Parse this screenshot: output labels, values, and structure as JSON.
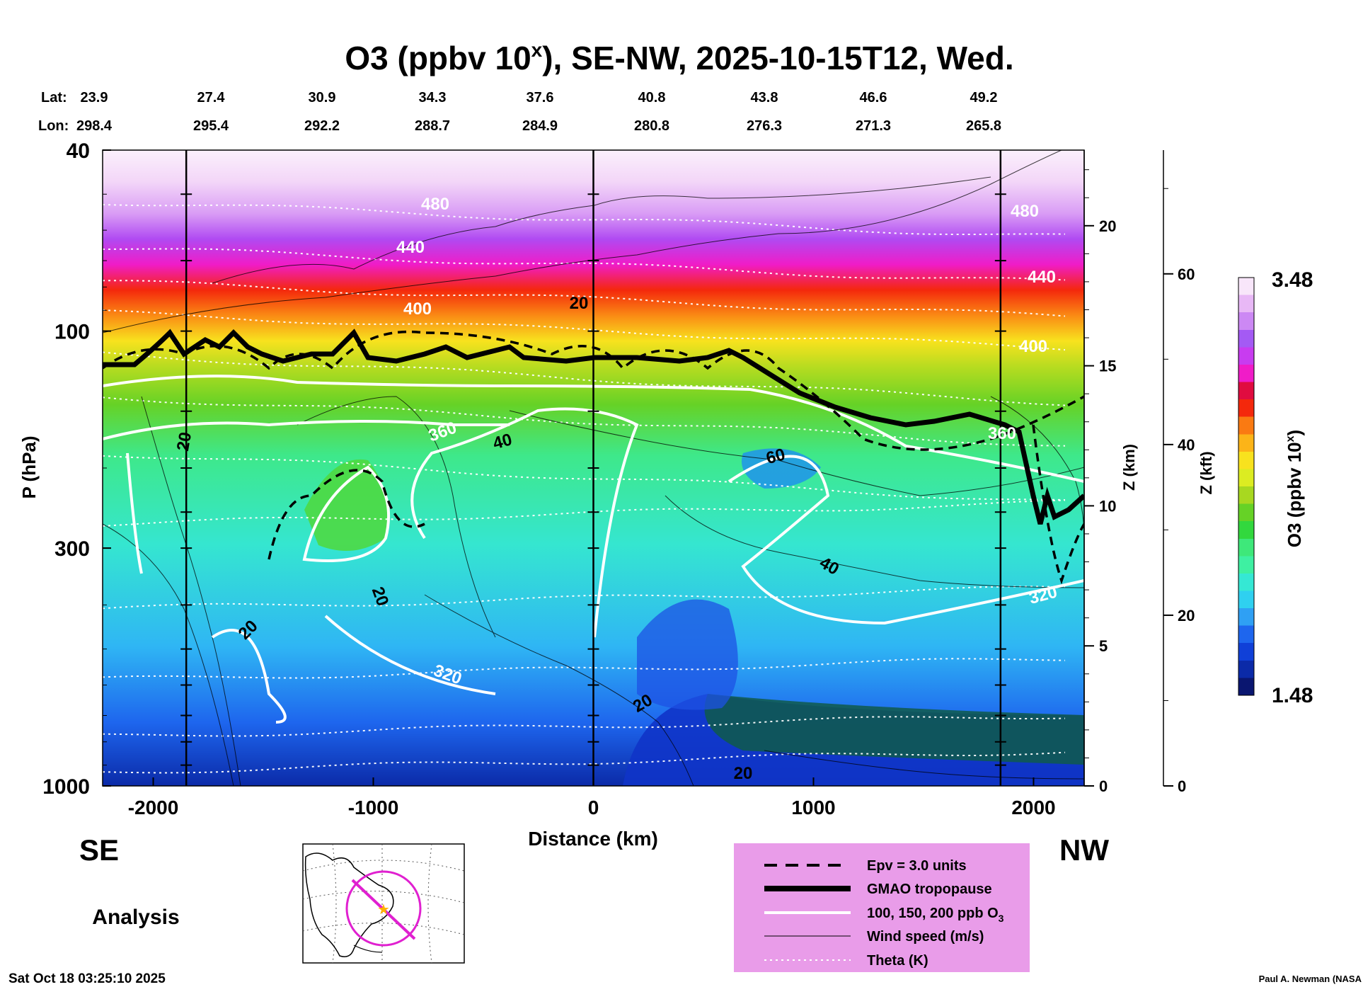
{
  "chart_data": {
    "type": "heatmap",
    "title": "O3 (ppbv 10x), SE-NW, 2025-10-15T12, Wed.",
    "title_parts": {
      "main": "O3 (ppbv 10",
      "sup": "x",
      "rest": "), SE-NW, 2025-10-15T12, Wed."
    },
    "lat_label": "Lat:",
    "lon_label": "Lon:",
    "lat_values": [
      "23.9",
      "27.4",
      "30.9",
      "34.3",
      "37.6",
      "40.8",
      "43.8",
      "46.6",
      "49.2"
    ],
    "lon_values": [
      "298.4",
      "295.4",
      "292.2",
      "288.7",
      "284.9",
      "280.8",
      "276.3",
      "271.3",
      "265.8"
    ],
    "xlabel": "Distance (km)",
    "xlim": [
      -2230,
      2230
    ],
    "x_ticks": [
      -2000,
      -1000,
      0,
      1000,
      2000
    ],
    "x_tick_labels": [
      "-2000",
      "-1000",
      "0",
      "1000",
      "2000"
    ],
    "ylabel": "P (hPa)",
    "ylim": [
      1000,
      40
    ],
    "y_scale": "log",
    "y_ticks": [
      40,
      100,
      300,
      1000
    ],
    "y_tick_labels": [
      "40",
      "100",
      "300",
      "1000"
    ],
    "z_km_label": "Z (km)",
    "z_km_ticks": [
      0,
      5,
      10,
      15,
      20
    ],
    "z_km_tick_labels": [
      "0",
      "5",
      "10",
      "15",
      "20"
    ],
    "z_kft_label": "Z (kft)",
    "z_kft_ticks": [
      0,
      20,
      40,
      60
    ],
    "z_kft_tick_labels": [
      "0",
      "20",
      "40",
      "60"
    ],
    "vertical_lines_km": [
      -1850,
      0,
      1850
    ],
    "direction_left": "SE",
    "direction_right": "NW",
    "analysis_label": "Analysis",
    "colorbar": {
      "label": "O3 (ppbv 10x)",
      "label_parts": {
        "main": "O3 (ppbv 10",
        "sup": "x",
        "rest": ")"
      },
      "min": 1.48,
      "max": 3.48,
      "min_label": "1.48",
      "max_label": "3.48",
      "colors": [
        "#0a1670",
        "#0b2aa8",
        "#1040d8",
        "#1e66ee",
        "#2fa0f4",
        "#2fd0f0",
        "#35e8d4",
        "#3ef0a2",
        "#3ee87a",
        "#32d83e",
        "#66d226",
        "#a8d820",
        "#dcec22",
        "#f8e21e",
        "#fcb418",
        "#fa7a12",
        "#f4280c",
        "#e00c40",
        "#f01cc8",
        "#c83cf0",
        "#a45af4",
        "#cc88f4",
        "#e8b8f6",
        "#f8e6fa"
      ]
    },
    "contour_labels": {
      "theta_K": [
        "480",
        "440",
        "400",
        "360",
        "320",
        "480",
        "440",
        "400",
        "360",
        "320"
      ],
      "wind_m_s": [
        "20",
        "20",
        "40",
        "60",
        "40",
        "20",
        "20",
        "20",
        "20"
      ]
    },
    "legend": [
      {
        "style": "dashed-thick",
        "label": "Epv = 3.0 units"
      },
      {
        "style": "solid-heavy",
        "label": "GMAO tropopause"
      },
      {
        "style": "solid-white",
        "label": "100, 150, 200 ppb O3",
        "label_main": "100, 150, 200 ppb O",
        "label_sub": "3"
      },
      {
        "style": "solid-thin",
        "label": "Wind speed (m/s)"
      },
      {
        "style": "dotted-white",
        "label": "Theta (K)"
      }
    ],
    "legend_background": "#e99ce9",
    "map_inset": {
      "description_icon": "north-america-map-icon",
      "path_color": "#e020d0",
      "marker_color": "#ffb000"
    },
    "footer_left": "Sat Oct 18 03:25:10 2025",
    "footer_right": "Paul A. Newman (NASA"
  }
}
